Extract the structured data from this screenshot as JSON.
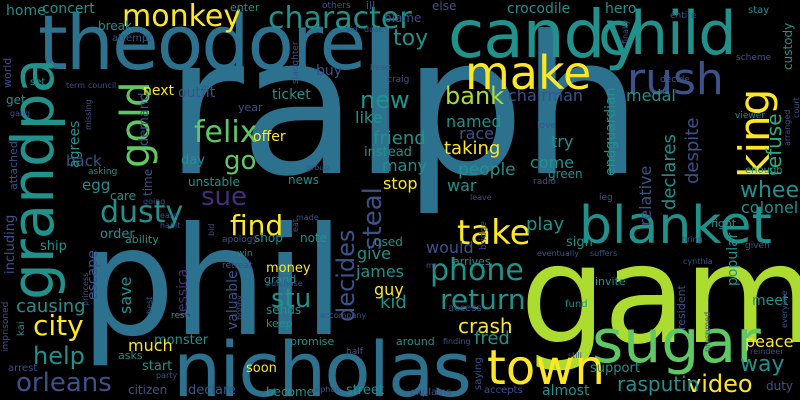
{
  "background": "#000000",
  "palette": [
    "#440154",
    "#472d7b",
    "#3b528b",
    "#2c728e",
    "#21918c",
    "#28ae80",
    "#5ec962",
    "#addc30",
    "#fde725"
  ],
  "words": [
    {
      "text": "ralph",
      "color": "#2c728e"
    },
    {
      "text": "phil",
      "color": "#2c728e"
    },
    {
      "text": "game",
      "color": "#addc30"
    },
    {
      "text": "theodore",
      "color": "#2c728e"
    },
    {
      "text": "nicholas",
      "color": "#2c728e"
    },
    {
      "text": "candy",
      "color": "#21918c"
    },
    {
      "text": "child",
      "color": "#21918c"
    },
    {
      "text": "grandpa",
      "color": "#21918c"
    },
    {
      "text": "sugar",
      "color": "#5ec962"
    },
    {
      "text": "blanket",
      "color": "#21918c"
    },
    {
      "text": "make",
      "color": "#fde725"
    },
    {
      "text": "town",
      "color": "#fde725"
    },
    {
      "text": "rush",
      "color": "#3b528b"
    },
    {
      "text": "king",
      "color": "#fde725"
    },
    {
      "text": "gold",
      "color": "#5ec962"
    },
    {
      "text": "character",
      "color": "#21918c"
    },
    {
      "text": "monkey",
      "color": "#fde725"
    },
    {
      "text": "dusty",
      "color": "#21918c"
    },
    {
      "text": "city",
      "color": "#fde725"
    },
    {
      "text": "orleans",
      "color": "#3b528b"
    },
    {
      "text": "help",
      "color": "#21918c"
    },
    {
      "text": "felix",
      "color": "#5ec962"
    },
    {
      "text": "go",
      "color": "#5ec962"
    },
    {
      "text": "find",
      "color": "#fde725"
    },
    {
      "text": "sue",
      "color": "#472d7b"
    },
    {
      "text": "stu",
      "color": "#21918c"
    },
    {
      "text": "take",
      "color": "#fde725"
    },
    {
      "text": "phone",
      "color": "#21918c"
    },
    {
      "text": "return",
      "color": "#21918c"
    },
    {
      "text": "decides",
      "color": "#3b528b"
    },
    {
      "text": "steal",
      "color": "#3b528b"
    },
    {
      "text": "bank",
      "color": "#addc30"
    },
    {
      "text": "new",
      "color": "#21918c"
    },
    {
      "text": "video",
      "color": "#fde725"
    },
    {
      "text": "way",
      "color": "#21918c"
    },
    {
      "text": "wheel",
      "color": "#21918c"
    },
    {
      "text": "refuse",
      "color": "#28ae80"
    },
    {
      "text": "toy",
      "color": "#21918c"
    },
    {
      "text": "rasputin",
      "color": "#21918c"
    },
    {
      "text": "crash",
      "color": "#fde725"
    },
    {
      "text": "fred",
      "color": "#21918c"
    },
    {
      "text": "kid",
      "color": "#21918c"
    },
    {
      "text": "guy",
      "color": "#fde725"
    },
    {
      "text": "james",
      "color": "#21918c"
    },
    {
      "text": "give",
      "color": "#21918c"
    },
    {
      "text": "used",
      "color": "#21918c"
    },
    {
      "text": "would",
      "color": "#3b528b"
    },
    {
      "text": "play",
      "color": "#21918c"
    },
    {
      "text": "sign",
      "color": "#21918c"
    },
    {
      "text": "people",
      "color": "#21918c"
    },
    {
      "text": "war",
      "color": "#21918c"
    },
    {
      "text": "stop",
      "color": "#fde725"
    },
    {
      "text": "many",
      "color": "#21918c"
    },
    {
      "text": "come",
      "color": "#21918c"
    },
    {
      "text": "taking",
      "color": "#fde725"
    },
    {
      "text": "try",
      "color": "#21918c"
    },
    {
      "text": "friend",
      "color": "#21918c"
    },
    {
      "text": "named",
      "color": "#21918c"
    },
    {
      "text": "race",
      "color": "#3b528b"
    },
    {
      "text": "like",
      "color": "#21918c"
    },
    {
      "text": "instead",
      "color": "#21918c"
    },
    {
      "text": "chairman",
      "color": "#3b528b"
    },
    {
      "text": "medal",
      "color": "#21918c"
    },
    {
      "text": "endguardian",
      "color": "#21918c"
    },
    {
      "text": "green",
      "color": "#21918c"
    },
    {
      "text": "declares",
      "color": "#21918c"
    },
    {
      "text": "relative",
      "color": "#3b528b"
    },
    {
      "text": "despite",
      "color": "#3b528b"
    },
    {
      "text": "colonel",
      "color": "#21918c"
    },
    {
      "text": "popular",
      "color": "#21918c"
    },
    {
      "text": "meet",
      "color": "#21918c"
    },
    {
      "text": "peace",
      "color": "#fde725"
    },
    {
      "text": "support",
      "color": "#21918c"
    },
    {
      "text": "almost",
      "color": "#21918c"
    },
    {
      "text": "duty",
      "color": "#3b528b"
    },
    {
      "text": "soon",
      "color": "#fde725"
    },
    {
      "text": "street",
      "color": "#21918c"
    },
    {
      "text": "become",
      "color": "#21918c"
    },
    {
      "text": "explains",
      "color": "#3b528b"
    },
    {
      "text": "accepts",
      "color": "#3b528b"
    },
    {
      "text": "saying",
      "color": "#3b528b"
    },
    {
      "text": "monster",
      "color": "#21918c"
    },
    {
      "text": "much",
      "color": "#fde725"
    },
    {
      "text": "start",
      "color": "#21918c"
    },
    {
      "text": "citizen",
      "color": "#3b528b"
    },
    {
      "text": "declare",
      "color": "#3b528b"
    },
    {
      "text": "causing",
      "color": "#21918c"
    },
    {
      "text": "save",
      "color": "#21918c"
    },
    {
      "text": "including",
      "color": "#3b528b"
    },
    {
      "text": "escape",
      "color": "#3b528b"
    },
    {
      "text": "jessica",
      "color": "#472d7b"
    },
    {
      "text": "valuable",
      "color": "#3b528b"
    },
    {
      "text": "money",
      "color": "#fde725"
    },
    {
      "text": "grand",
      "color": "#21918c"
    },
    {
      "text": "ship",
      "color": "#21918c"
    },
    {
      "text": "order",
      "color": "#21918c"
    },
    {
      "text": "egg",
      "color": "#21918c"
    },
    {
      "text": "back",
      "color": "#3b528b"
    },
    {
      "text": "agrees",
      "color": "#21918c"
    },
    {
      "text": "demand",
      "color": "#3b528b"
    },
    {
      "text": "day",
      "color": "#21918c"
    },
    {
      "text": "unstable",
      "color": "#21918c"
    },
    {
      "text": "offer",
      "color": "#fde725"
    },
    {
      "text": "ticket",
      "color": "#21918c"
    },
    {
      "text": "outfit",
      "color": "#3b528b"
    },
    {
      "text": "next",
      "color": "#fde725"
    },
    {
      "text": "year",
      "color": "#3b528b"
    },
    {
      "text": "buy",
      "color": "#3b528b"
    },
    {
      "text": "news",
      "color": "#21918c"
    },
    {
      "text": "note",
      "color": "#21918c"
    },
    {
      "text": "shop",
      "color": "#21918c"
    },
    {
      "text": "sends",
      "color": "#21918c"
    },
    {
      "text": "keep",
      "color": "#21918c"
    },
    {
      "text": "concert",
      "color": "#21918c"
    },
    {
      "text": "home",
      "color": "#21918c"
    },
    {
      "text": "crocodile",
      "color": "#21918c"
    },
    {
      "text": "hero",
      "color": "#21918c"
    },
    {
      "text": "custody",
      "color": "#21918c"
    },
    {
      "text": "get",
      "color": "#21918c"
    },
    {
      "text": "time",
      "color": "#3b528b"
    },
    {
      "text": "care",
      "color": "#21918c"
    },
    {
      "text": "ability",
      "color": "#21918c"
    },
    {
      "text": "fund",
      "color": "#21918c"
    },
    {
      "text": "invite",
      "color": "#21918c"
    },
    {
      "text": "resident",
      "color": "#3b528b"
    },
    {
      "text": "fight",
      "color": "#21918c"
    },
    {
      "text": "enough",
      "color": "#21918c"
    },
    {
      "text": "access",
      "color": "#3b528b"
    },
    {
      "text": "arrives",
      "color": "#21918c"
    },
    {
      "text": "around",
      "color": "#21918c"
    },
    {
      "text": "promise",
      "color": "#21918c"
    },
    {
      "text": "asks",
      "color": "#21918c"
    },
    {
      "text": "arrest",
      "color": "#3b528b"
    },
    {
      "text": "world",
      "color": "#3b528b"
    },
    {
      "text": "break",
      "color": "#21918c"
    },
    {
      "text": "attempt",
      "color": "#3b528b"
    },
    {
      "text": "enter",
      "color": "#21918c"
    },
    {
      "text": "blame",
      "color": "#3b528b"
    },
    {
      "text": "ill",
      "color": "#3b528b"
    },
    {
      "text": "else",
      "color": "#3b528b"
    },
    {
      "text": "entire",
      "color": "#3b528b"
    },
    {
      "text": "stay",
      "color": "#21918c"
    },
    {
      "text": "set",
      "color": "#21918c"
    },
    {
      "text": "asking",
      "color": "#21918c"
    },
    {
      "text": "attached",
      "color": "#3b528b"
    },
    {
      "text": "imprisoned",
      "color": "#3b528b"
    },
    {
      "text": "kai",
      "color": "#21918c"
    },
    {
      "text": "rest",
      "color": "#21918c"
    },
    {
      "text": "apology",
      "color": "#3b528b"
    },
    {
      "text": "win",
      "color": "#21918c"
    },
    {
      "text": "half",
      "color": "#3b528b"
    },
    {
      "text": "gang",
      "color": "#3b528b"
    },
    {
      "text": "missing",
      "color": "#3b528b"
    },
    {
      "text": "leg",
      "color": "#3b528b"
    },
    {
      "text": "eventually",
      "color": "#3b528b"
    },
    {
      "text": "suffers",
      "color": "#3b528b"
    },
    {
      "text": "others",
      "color": "#3b528b"
    },
    {
      "text": "craig",
      "color": "#3b528b"
    },
    {
      "text": "heart",
      "color": "#3b528b"
    },
    {
      "text": "slaughter",
      "color": "#3b528b"
    },
    {
      "text": "decide",
      "color": "#3b528b"
    },
    {
      "text": "scheme",
      "color": "#3b528b"
    },
    {
      "text": "viewer",
      "color": "#21918c"
    },
    {
      "text": "given",
      "color": "#3b528b"
    },
    {
      "text": "bring",
      "color": "#3b528b"
    },
    {
      "text": "cynthia",
      "color": "#3b528b"
    },
    {
      "text": "bridge",
      "color": "#3b528b"
    },
    {
      "text": "radio",
      "color": "#3b528b"
    },
    {
      "text": "love",
      "color": "#3b528b"
    },
    {
      "text": "going",
      "color": "#3b528b"
    },
    {
      "text": "habit",
      "color": "#3b528b"
    },
    {
      "text": "bobby",
      "color": "#3b528b"
    },
    {
      "text": "purchase",
      "color": "#3b528b"
    },
    {
      "text": "retreat",
      "color": "#3b528b"
    },
    {
      "text": "accompany",
      "color": "#3b528b"
    },
    {
      "text": "finding",
      "color": "#3b528b"
    },
    {
      "text": "orphan",
      "color": "#3b528b"
    },
    {
      "text": "presumed",
      "color": "#3b528b"
    },
    {
      "text": "reindeer",
      "color": "#3b528b"
    },
    {
      "text": "everyone",
      "color": "#3b528b"
    },
    {
      "text": "arranged",
      "color": "#3b528b"
    },
    {
      "text": "court",
      "color": "#3b528b"
    },
    {
      "text": "finally",
      "color": "#3b528b"
    },
    {
      "text": "term",
      "color": "#3b528b"
    },
    {
      "text": "council",
      "color": "#3b528b"
    },
    {
      "text": "princess",
      "color": "#3b528b"
    },
    {
      "text": "best",
      "color": "#3b528b"
    },
    {
      "text": "party",
      "color": "#3b528b"
    },
    {
      "text": "still",
      "color": "#3b528b"
    },
    {
      "text": "leave",
      "color": "#3b528b"
    },
    {
      "text": "group",
      "color": "#3b528b"
    },
    {
      "text": "made",
      "color": "#3b528b"
    },
    {
      "text": "mr",
      "color": "#3b528b"
    },
    {
      "text": "eat",
      "color": "#3b528b"
    },
    {
      "text": "bid",
      "color": "#3b528b"
    },
    {
      "text": "earn",
      "color": "#3b528b"
    },
    {
      "text": "dusk",
      "color": "#3b528b"
    },
    {
      "text": "sid",
      "color": "#3b528b"
    }
  ]
}
